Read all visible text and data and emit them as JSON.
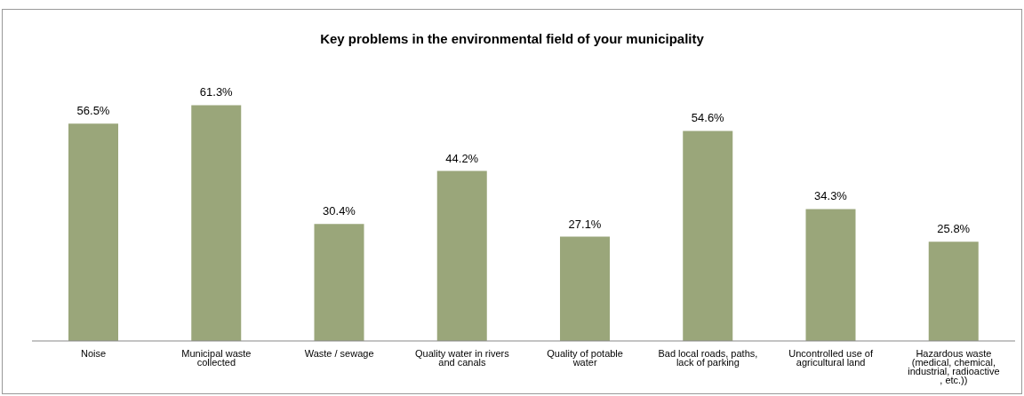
{
  "chart_data": {
    "type": "bar",
    "title": "Key problems in the environmental field of your municipality",
    "categories": [
      "Noise",
      "Municipal waste collected",
      "Waste / sewage",
      "Quality water in rivers and canals",
      "Quality of potable water",
      "Bad local roads, paths, lack of parking",
      "Uncontrolled use of agricultural land",
      "Hazardous waste (medical, chemical, industrial, radioactive , etc.))"
    ],
    "values": [
      56.5,
      61.3,
      30.4,
      44.2,
      27.1,
      54.6,
      34.3,
      25.8
    ],
    "value_labels": [
      "56.5%",
      "61.3%",
      "30.4%",
      "44.2%",
      "27.1%",
      "54.6%",
      "34.3%",
      "25.8%"
    ],
    "color": "#9aa67a",
    "grid": false,
    "legend": false
  }
}
